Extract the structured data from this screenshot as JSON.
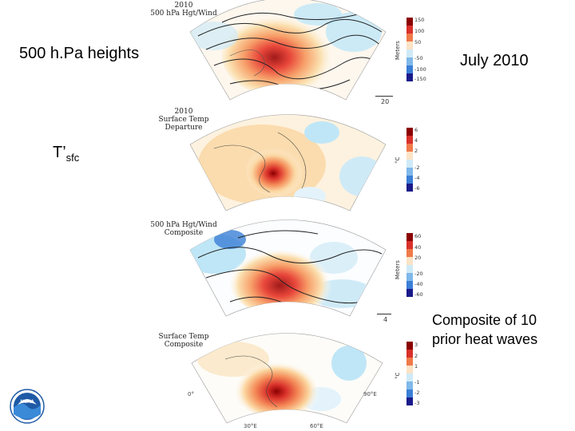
{
  "labels": {
    "heights": "500 h.Pa heights",
    "july": "July 2010",
    "tsfc_main": "T’",
    "tsfc_sub": "sfc",
    "composite_line1": "Composite of 10",
    "composite_line2": "prior heat waves"
  },
  "panels": [
    {
      "title": [
        "2010",
        "500 hPa Hgt/Wind"
      ],
      "unit": "Meters",
      "ticks": [
        "150",
        "100",
        "50",
        "-50",
        "-100",
        "-150"
      ],
      "vector_ref": "20"
    },
    {
      "title": [
        "2010",
        "Surface Temp",
        "Departure"
      ],
      "unit": "°C",
      "ticks": [
        "6",
        "4",
        "2",
        "-2",
        "-4",
        "-6"
      ]
    },
    {
      "title": [
        "500 hPa Hgt/Wind",
        "Composite"
      ],
      "unit": "Meters",
      "ticks": [
        "60",
        "40",
        "20",
        "-20",
        "-40",
        "-60"
      ],
      "vector_ref": "4"
    },
    {
      "title": [
        "Surface Temp",
        "Composite"
      ],
      "unit": "°C",
      "ticks": [
        "3",
        "2",
        "1",
        "-1",
        "-2",
        "-3"
      ],
      "lon_labels": [
        "0°",
        "30°E",
        "60°E",
        "90°E"
      ]
    }
  ],
  "colors": {
    "warm_max": "#8b0000",
    "warm": "#e8463a",
    "warm_light": "#f7c48a",
    "cool_light": "#bfe6f7",
    "cool": "#3b7fd6",
    "cool_max": "#1a1a8a"
  },
  "logo": {
    "icon": "noaa-logo",
    "text": "NOAA"
  }
}
